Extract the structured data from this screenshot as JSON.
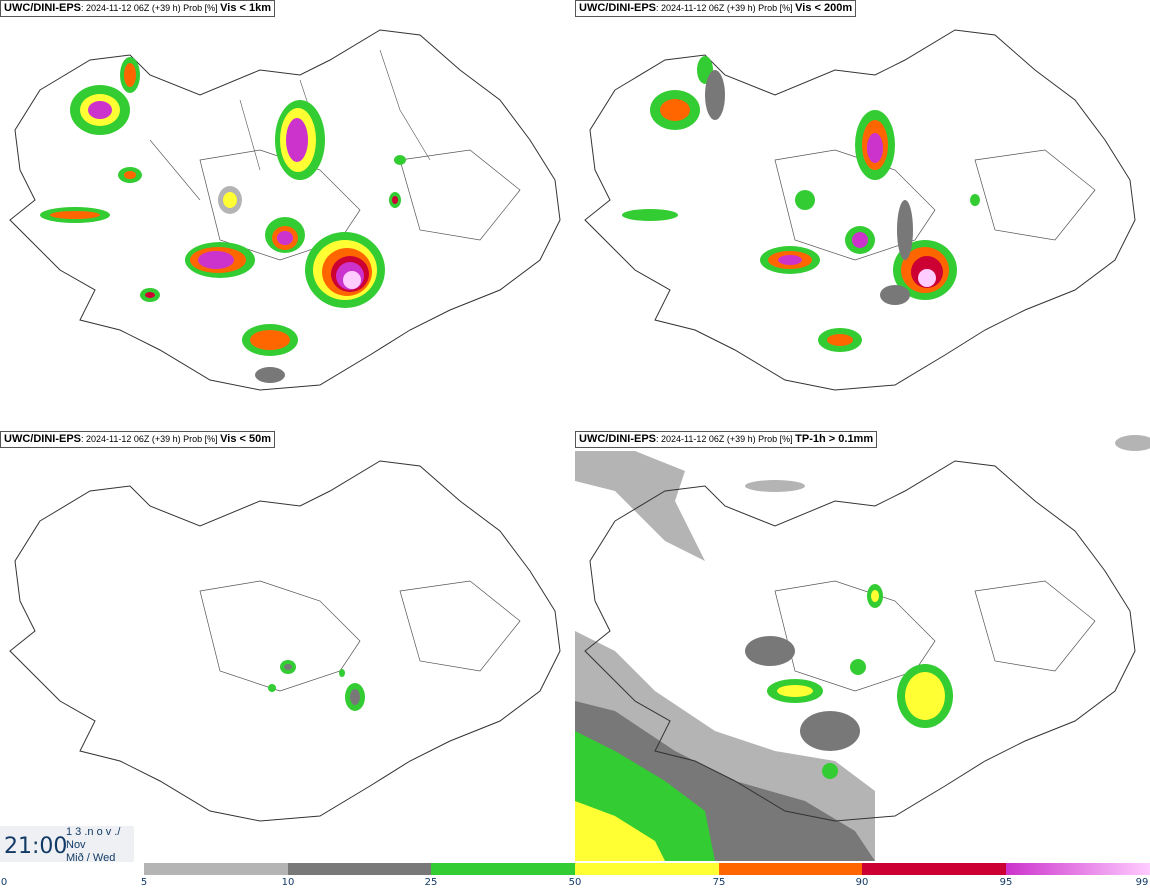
{
  "panels": [
    {
      "prefix": "UWC/DINI-EPS",
      "meta": ": 2024-11-12 06Z (+39 h) Prob [%] ",
      "field": "Vis < 1km"
    },
    {
      "prefix": "UWC/DINI-EPS",
      "meta": ": 2024-11-12 06Z (+39 h) Prob [%] ",
      "field": "Vis < 200m"
    },
    {
      "prefix": "UWC/DINI-EPS",
      "meta": ": 2024-11-12 06Z (+39 h) Prob [%] ",
      "field": "Vis < 50m"
    },
    {
      "prefix": "UWC/DINI-EPS",
      "meta": ": 2024-11-12 06Z (+39 h) Prob [%] ",
      "field": "TP-1h > 0.1mm"
    }
  ],
  "timebox": {
    "time": "21:00",
    "line1": "1 3 .n o v ./",
    "line2": "Nov",
    "line3": "Mið / Wed"
  },
  "colorbar": {
    "ticks": [
      "0",
      "5",
      "10",
      "25",
      "50",
      "75",
      "90",
      "95",
      "99"
    ],
    "colors": [
      "#ffffff",
      "#b4b4b4",
      "#787878",
      "#33cc33",
      "#ffff33",
      "#ff6600",
      "#cc0033",
      "#cc33cc",
      "#ffccff"
    ]
  }
}
